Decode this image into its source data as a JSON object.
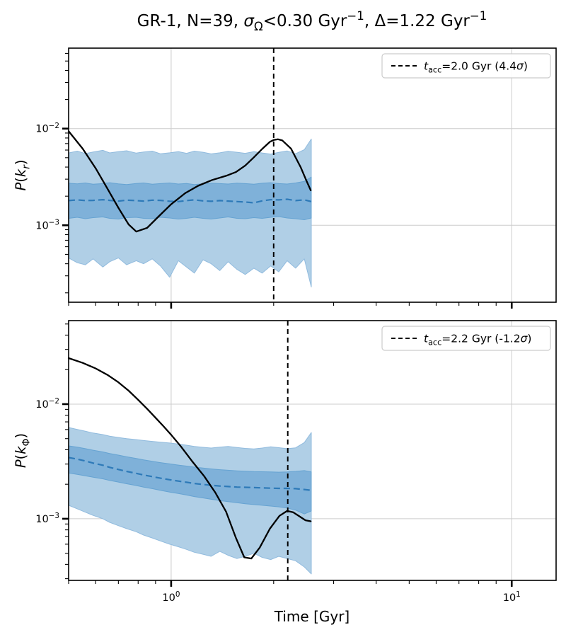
{
  "figure": {
    "title_parts": [
      {
        "t": "GR-1, N=39, "
      },
      {
        "t": "σ",
        "italic": true
      },
      {
        "t": "Ω",
        "sub": true
      },
      {
        "t": "<0.30 Gyr"
      },
      {
        "t": "−1",
        "sup": true
      },
      {
        "t": ", Δ=1.22 Gyr"
      },
      {
        "t": "−1",
        "sup": true
      }
    ],
    "title_plain": "GR-1, N=39, σ_Ω<0.30 Gyr⁻¹, Δ=1.22 Gyr⁻¹",
    "xlabel": "Time [Gyr]",
    "x_ticks": [
      {
        "value": 1,
        "parts": [
          {
            "t": "10"
          },
          {
            "t": "0",
            "sup": true
          }
        ]
      },
      {
        "value": 10,
        "parts": [
          {
            "t": "10"
          },
          {
            "t": "1",
            "sup": true
          }
        ]
      }
    ],
    "colors": {
      "observed_curve": "#000000",
      "null_median": "#2e7ab8",
      "band_inner": "#7fb1d9",
      "band_inner_edge": "#66a3d2",
      "band_outer": "#b0cfe6",
      "band_outer_edge": "#91bbde",
      "grid": "#cccccc",
      "vline": "#000000",
      "legend_border": "#cccccc",
      "spine": "#000000"
    }
  },
  "chart_data": [
    {
      "type": "line",
      "panel": "top",
      "ylabel_parts": [
        {
          "t": "P",
          "italic": true
        },
        {
          "t": "("
        },
        {
          "t": "k",
          "italic": true
        },
        {
          "t": "r",
          "sub": true,
          "italic": true
        },
        {
          "t": ")"
        }
      ],
      "ylabel_plain": "P(k_r)",
      "xscale": "log",
      "yscale": "log",
      "xlim": [
        0.5,
        13.5
      ],
      "ylim": [
        0.00016,
        0.068
      ],
      "grid": true,
      "y_ticks": [
        {
          "value": 0.01,
          "parts": [
            {
              "t": "10"
            },
            {
              "t": "−2",
              "sup": true
            }
          ]
        },
        {
          "value": 0.001,
          "parts": [
            {
              "t": "10"
            },
            {
              "t": "−3",
              "sup": true
            }
          ]
        }
      ],
      "vline_x": 2.0,
      "legend_parts": [
        {
          "t": "t",
          "italic": true
        },
        {
          "t": "acc",
          "sub": true
        },
        {
          "t": "=2.0 Gyr (4.4"
        },
        {
          "t": "σ",
          "italic": true
        },
        {
          "t": ")"
        }
      ],
      "legend_plain": "t_acc=2.0 Gyr (4.4σ)",
      "observed": {
        "t": [
          0.5,
          0.55,
          0.6,
          0.65,
          0.7,
          0.75,
          0.79,
          0.85,
          0.92,
          1.0,
          1.1,
          1.2,
          1.32,
          1.45,
          1.55,
          1.65,
          1.75,
          1.85,
          1.95,
          2.0,
          2.06,
          2.12,
          2.25,
          2.4,
          2.5,
          2.57
        ],
        "y": [
          0.0094,
          0.0062,
          0.0039,
          0.0024,
          0.00152,
          0.00102,
          0.00086,
          0.00094,
          0.00124,
          0.00165,
          0.00215,
          0.00256,
          0.00294,
          0.00325,
          0.00355,
          0.00415,
          0.00505,
          0.00615,
          0.0073,
          0.00762,
          0.00775,
          0.00755,
          0.0062,
          0.004,
          0.00285,
          0.0023
        ]
      },
      "t": [
        0.5,
        0.53,
        0.56,
        0.59,
        0.63,
        0.66,
        0.7,
        0.74,
        0.79,
        0.83,
        0.88,
        0.93,
        0.99,
        1.05,
        1.11,
        1.17,
        1.24,
        1.31,
        1.39,
        1.47,
        1.56,
        1.65,
        1.75,
        1.85,
        1.96,
        2.07,
        2.19,
        2.32,
        2.46,
        2.58
      ],
      "null_median": [
        0.0018,
        0.00183,
        0.0018,
        0.00181,
        0.00184,
        0.00181,
        0.00178,
        0.00182,
        0.0018,
        0.00178,
        0.00182,
        0.00181,
        0.00177,
        0.00176,
        0.0018,
        0.00183,
        0.00179,
        0.00177,
        0.0018,
        0.00178,
        0.00176,
        0.00174,
        0.00171,
        0.00179,
        0.00184,
        0.00183,
        0.00186,
        0.0018,
        0.00183,
        0.00176
      ],
      "band_inner_hi": [
        0.00272,
        0.00268,
        0.00274,
        0.00266,
        0.0027,
        0.00276,
        0.00268,
        0.00264,
        0.00271,
        0.00274,
        0.00266,
        0.0027,
        0.00274,
        0.00267,
        0.00271,
        0.00264,
        0.00269,
        0.00273,
        0.0027,
        0.00267,
        0.00273,
        0.0027,
        0.00266,
        0.00272,
        0.00276,
        0.0027,
        0.00267,
        0.00274,
        0.00285,
        0.00315
      ],
      "band_inner_lo": [
        0.00118,
        0.00121,
        0.00117,
        0.0012,
        0.00122,
        0.00118,
        0.00116,
        0.0012,
        0.00121,
        0.00118,
        0.00117,
        0.00121,
        0.00119,
        0.00116,
        0.00118,
        0.00121,
        0.00118,
        0.00116,
        0.00119,
        0.00122,
        0.00118,
        0.00117,
        0.0012,
        0.00118,
        0.00121,
        0.00123,
        0.00119,
        0.00117,
        0.00114,
        0.00119
      ],
      "band_outer_hi": [
        0.0056,
        0.00585,
        0.00552,
        0.00572,
        0.00596,
        0.00561,
        0.00578,
        0.0059,
        0.00558,
        0.00572,
        0.00585,
        0.0055,
        0.00562,
        0.00578,
        0.00555,
        0.00585,
        0.0057,
        0.00548,
        0.00562,
        0.00582,
        0.0057,
        0.00555,
        0.00578,
        0.0056,
        0.00545,
        0.00568,
        0.00588,
        0.0055,
        0.00605,
        0.0078
      ],
      "band_outer_lo": [
        0.00046,
        0.00041,
        0.00039,
        0.00045,
        0.00037,
        0.00042,
        0.00046,
        0.00039,
        0.00043,
        0.0004,
        0.00045,
        0.00038,
        0.00029,
        0.00043,
        0.00037,
        0.00032,
        0.00044,
        0.0004,
        0.00034,
        0.00042,
        0.00035,
        0.00031,
        0.00036,
        0.00032,
        0.00038,
        0.00033,
        0.00043,
        0.00036,
        0.00045,
        0.00023
      ]
    },
    {
      "type": "line",
      "panel": "bottom",
      "ylabel_parts": [
        {
          "t": "P",
          "italic": true
        },
        {
          "t": "("
        },
        {
          "t": "k",
          "italic": true
        },
        {
          "t": "Φ",
          "sub": true
        },
        {
          "t": ")"
        }
      ],
      "ylabel_plain": "P(k_Φ)",
      "xscale": "log",
      "yscale": "log",
      "xlim": [
        0.5,
        13.5
      ],
      "ylim": [
        0.00029,
        0.0535
      ],
      "grid": true,
      "y_ticks": [
        {
          "value": 0.01,
          "parts": [
            {
              "t": "10"
            },
            {
              "t": "−2",
              "sup": true
            }
          ]
        },
        {
          "value": 0.001,
          "parts": [
            {
              "t": "10"
            },
            {
              "t": "−3",
              "sup": true
            }
          ]
        }
      ],
      "vline_x": 2.2,
      "legend_parts": [
        {
          "t": "t",
          "italic": true
        },
        {
          "t": "acc",
          "sub": true
        },
        {
          "t": "=2.2 Gyr (-1.2",
          "italic": false
        },
        {
          "t": "σ",
          "italic": true
        },
        {
          "t": ")"
        }
      ],
      "legend_plain": "t_acc=2.2 Gyr (-1.2σ)",
      "observed": {
        "t": [
          0.5,
          0.55,
          0.6,
          0.65,
          0.7,
          0.75,
          0.8,
          0.85,
          0.9,
          0.95,
          1.0,
          1.07,
          1.15,
          1.25,
          1.35,
          1.45,
          1.55,
          1.64,
          1.72,
          1.82,
          1.95,
          2.08,
          2.19,
          2.28,
          2.38,
          2.48,
          2.57
        ],
        "y": [
          0.0252,
          0.0229,
          0.0205,
          0.018,
          0.0155,
          0.0131,
          0.0109,
          0.0091,
          0.0076,
          0.0064,
          0.0054,
          0.00425,
          0.0032,
          0.00235,
          0.00168,
          0.00115,
          0.00068,
          0.00046,
          0.00045,
          0.00056,
          0.00082,
          0.00106,
          0.00117,
          0.00114,
          0.00105,
          0.00097,
          0.00095
        ]
      },
      "t": [
        0.5,
        0.53,
        0.56,
        0.59,
        0.63,
        0.66,
        0.7,
        0.74,
        0.79,
        0.83,
        0.88,
        0.93,
        0.99,
        1.05,
        1.11,
        1.17,
        1.24,
        1.31,
        1.39,
        1.47,
        1.56,
        1.65,
        1.75,
        1.85,
        1.96,
        2.07,
        2.19,
        2.32,
        2.46,
        2.58
      ],
      "null_median": [
        0.00342,
        0.00331,
        0.00319,
        0.00306,
        0.00293,
        0.00281,
        0.00269,
        0.00259,
        0.00249,
        0.00241,
        0.00233,
        0.00226,
        0.00219,
        0.00213,
        0.00208,
        0.00203,
        0.00199,
        0.00196,
        0.00193,
        0.00191,
        0.00189,
        0.00188,
        0.00187,
        0.00186,
        0.00185,
        0.00184,
        0.00184,
        0.00183,
        0.0018,
        0.00177
      ],
      "band_inner_hi": [
        0.00432,
        0.00421,
        0.00409,
        0.00396,
        0.00383,
        0.00371,
        0.00359,
        0.00347,
        0.00336,
        0.00326,
        0.00317,
        0.00309,
        0.00301,
        0.00294,
        0.00288,
        0.00282,
        0.00277,
        0.00272,
        0.00268,
        0.00265,
        0.00262,
        0.0026,
        0.00258,
        0.00257,
        0.00256,
        0.00255,
        0.00256,
        0.00259,
        0.00263,
        0.00256
      ],
      "band_inner_lo": [
        0.00251,
        0.00244,
        0.00237,
        0.0023,
        0.00223,
        0.00216,
        0.00209,
        0.00202,
        0.00195,
        0.00189,
        0.00183,
        0.00177,
        0.00171,
        0.00166,
        0.00161,
        0.00156,
        0.00152,
        0.00148,
        0.00144,
        0.00141,
        0.00138,
        0.00135,
        0.00133,
        0.00131,
        0.00129,
        0.00127,
        0.00124,
        0.00119,
        0.0011,
        0.00117
      ],
      "band_outer_hi": [
        0.00625,
        0.00602,
        0.0058,
        0.0056,
        0.00542,
        0.00526,
        0.00512,
        0.005,
        0.0049,
        0.00481,
        0.00473,
        0.00466,
        0.00458,
        0.00448,
        0.00438,
        0.00428,
        0.0042,
        0.00414,
        0.00421,
        0.00428,
        0.00419,
        0.00411,
        0.00407,
        0.00414,
        0.00424,
        0.00417,
        0.00409,
        0.00416,
        0.00462,
        0.00565
      ],
      "band_outer_lo": [
        0.00131,
        0.00122,
        0.00114,
        0.00107,
        0.001,
        0.00093,
        0.00087,
        0.00082,
        0.00077,
        0.00072,
        0.00068,
        0.00064,
        0.0006,
        0.00057,
        0.00054,
        0.00051,
        0.00049,
        0.00047,
        0.00052,
        0.00048,
        0.00045,
        0.00047,
        0.0005,
        0.00046,
        0.00044,
        0.00047,
        0.00045,
        0.00043,
        0.00038,
        0.00033
      ]
    }
  ]
}
